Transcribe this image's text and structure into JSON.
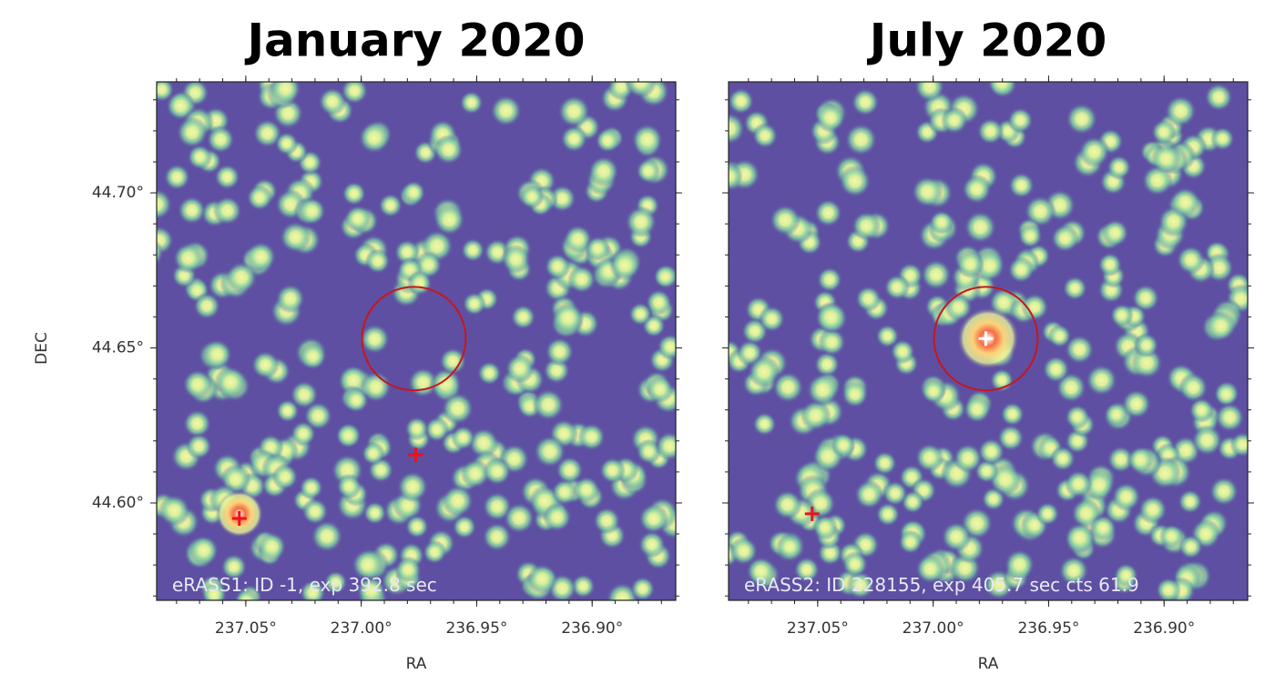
{
  "chart_data": [
    {
      "type": "image",
      "title": "January 2020",
      "annotation": "eRASS1: ID -1, exp 392.8 sec",
      "xlabel": "RA",
      "ylabel": "DEC",
      "xlim": [
        237.0886,
        236.8638
      ],
      "ylim": [
        44.5686,
        44.7358
      ],
      "xticks": [
        {
          "value": 237.05,
          "label": "237.05°"
        },
        {
          "value": 237.0,
          "label": "237.00°"
        },
        {
          "value": 236.95,
          "label": "236.95°"
        },
        {
          "value": 236.9,
          "label": "236.90°"
        }
      ],
      "yticks": [
        {
          "value": 44.6,
          "label": "44.60°"
        },
        {
          "value": 44.65,
          "label": "44.65°"
        },
        {
          "value": 44.7,
          "label": "44.70°"
        }
      ],
      "markers": [
        {
          "x": 236.9764,
          "y": 44.6155,
          "color": "#e8141c"
        },
        {
          "x": 237.0528,
          "y": 44.595,
          "color": "#e8141c"
        }
      ],
      "circle": {
        "x": 236.9772,
        "y": 44.653,
        "r": 0.0167,
        "color": "#c8161d"
      }
    },
    {
      "type": "image",
      "title": "July 2020",
      "annotation": "eRASS2: ID 228155, exp 405.7 sec cts 61.9",
      "xlabel": "RA",
      "xlim": [
        237.0886,
        236.8638
      ],
      "ylim": [
        44.5686,
        44.7358
      ],
      "xticks": [
        {
          "value": 237.05,
          "label": "237.05°"
        },
        {
          "value": 237.0,
          "label": "237.00°"
        },
        {
          "value": 236.95,
          "label": "236.95°"
        },
        {
          "value": 236.9,
          "label": "236.90°"
        }
      ],
      "yticks": [
        44.6,
        44.65,
        44.7
      ],
      "markers": [
        {
          "x": 236.9772,
          "y": 44.653,
          "color": "#ffffff"
        },
        {
          "x": 237.0524,
          "y": 44.5965,
          "color": "#e8141c"
        }
      ],
      "circle": {
        "x": 236.9772,
        "y": 44.653,
        "r": 0.0167,
        "color": "#c8161d"
      }
    }
  ]
}
